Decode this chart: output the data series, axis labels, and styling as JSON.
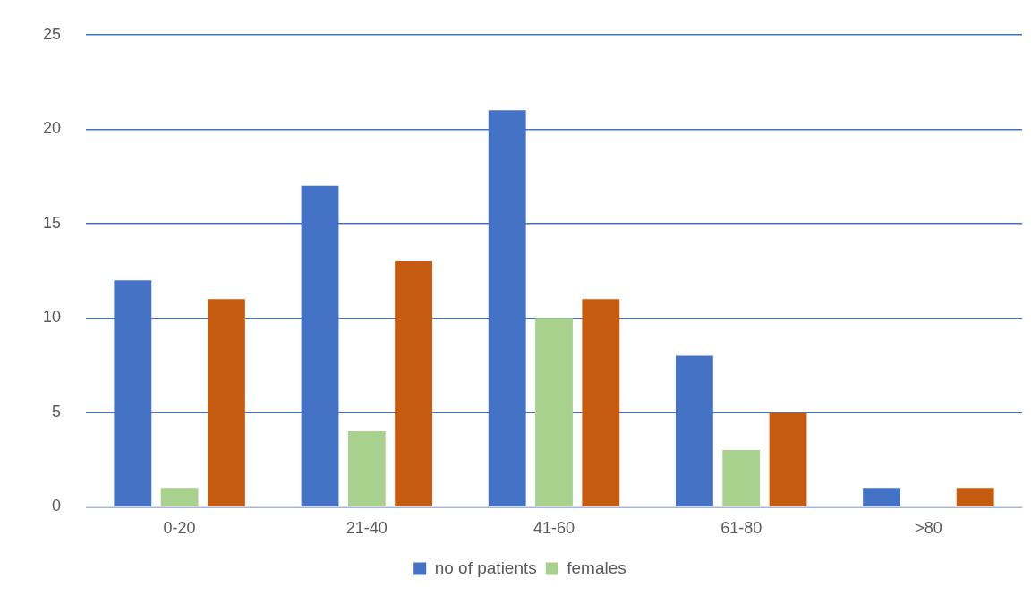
{
  "chart_data": {
    "type": "bar",
    "categories": [
      "0-20",
      "21-40",
      "41-60",
      "61-80",
      ">80"
    ],
    "series": [
      {
        "name": "no of patients",
        "color": "#4472c4",
        "values": [
          12,
          17,
          21,
          8,
          1
        ]
      },
      {
        "name": "females",
        "color": "#a9d18e",
        "values": [
          1,
          4,
          10,
          3,
          0
        ]
      },
      {
        "color": "#c55a11",
        "values": [
          11,
          13,
          11,
          5,
          1
        ]
      }
    ],
    "ylim": [
      0,
      25
    ],
    "yticks": [
      0,
      5,
      10,
      15,
      20,
      25
    ],
    "grid": "y",
    "legend": "bottom"
  }
}
